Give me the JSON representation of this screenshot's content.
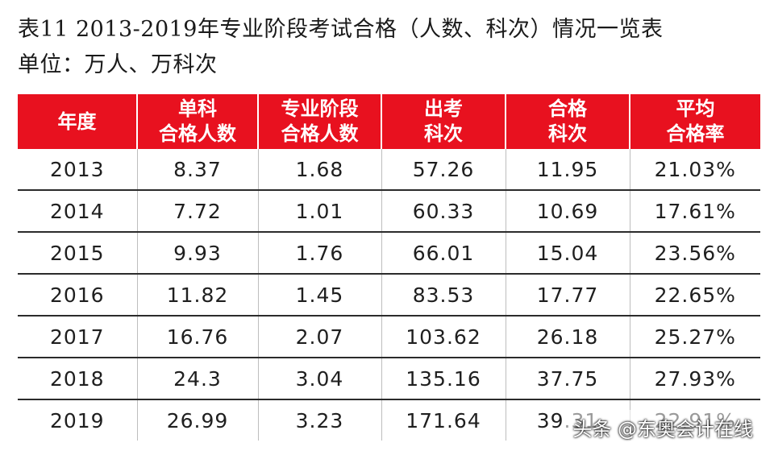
{
  "title": "表11  2013-2019年专业阶段考试合格（人数、科次）情况一览表",
  "unit": "单位：万人、万科次",
  "table": {
    "headers": [
      "年度",
      "单科\n合格人数",
      "专业阶段\n合格人数",
      "出考\n科次",
      "合格\n科次",
      "平均\n合格率"
    ],
    "rows": [
      [
        "2013",
        "8.37",
        "1.68",
        "57.26",
        "11.95",
        "21.03%"
      ],
      [
        "2014",
        "7.72",
        "1.01",
        "60.33",
        "10.69",
        "17.61%"
      ],
      [
        "2015",
        "9.93",
        "1.76",
        "66.01",
        "15.04",
        "23.56%"
      ],
      [
        "2016",
        "11.82",
        "1.45",
        "83.53",
        "17.77",
        "22.65%"
      ],
      [
        "2017",
        "16.76",
        "2.07",
        "103.62",
        "26.18",
        "25.27%"
      ],
      [
        "2018",
        "24.3",
        "3.04",
        "135.16",
        "37.75",
        "27.93%"
      ],
      [
        "2019",
        "26.99",
        "3.23",
        "171.64",
        "39.31",
        "22.91%"
      ]
    ]
  },
  "watermark": "头条 @东奥会计在线",
  "colors": {
    "header_bg": "#e8111f",
    "header_text": "#ffffff",
    "row_divider": "#2b2b2b"
  }
}
